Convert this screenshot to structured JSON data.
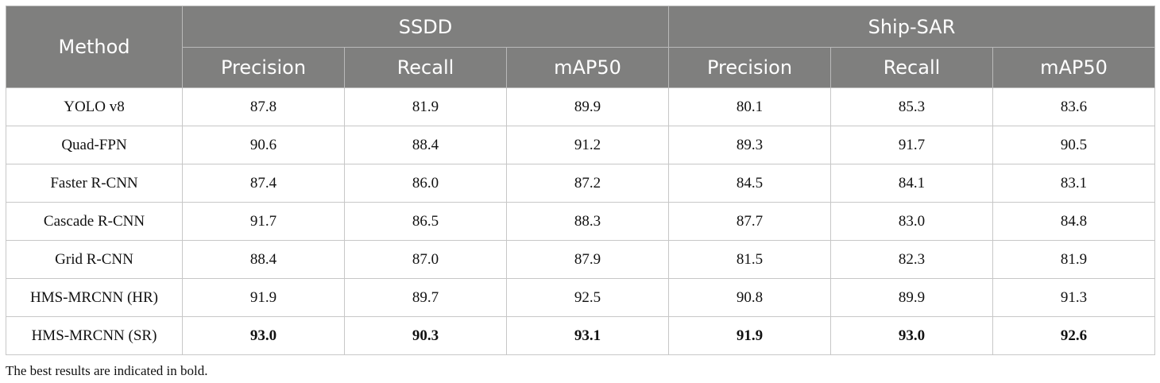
{
  "table": {
    "method_header": "Method",
    "groups": [
      {
        "name": "SSDD",
        "metrics": [
          "Precision",
          "Recall",
          "mAP50"
        ]
      },
      {
        "name": "Ship-SAR",
        "metrics": [
          "Precision",
          "Recall",
          "mAP50"
        ]
      }
    ],
    "rows": [
      {
        "method": "YOLO v8",
        "values": [
          "87.8",
          "81.9",
          "89.9",
          "80.1",
          "85.3",
          "83.6"
        ]
      },
      {
        "method": "Quad-FPN",
        "values": [
          "90.6",
          "88.4",
          "91.2",
          "89.3",
          "91.7",
          "90.5"
        ]
      },
      {
        "method": "Faster R-CNN",
        "values": [
          "87.4",
          "86.0",
          "87.2",
          "84.5",
          "84.1",
          "83.1"
        ]
      },
      {
        "method": "Cascade R-CNN",
        "values": [
          "91.7",
          "86.5",
          "88.3",
          "87.7",
          "83.0",
          "84.8"
        ]
      },
      {
        "method": "Grid R-CNN",
        "values": [
          "88.4",
          "87.0",
          "87.9",
          "81.5",
          "82.3",
          "81.9"
        ]
      },
      {
        "method": "HMS-MRCNN (HR)",
        "values": [
          "91.9",
          "89.7",
          "92.5",
          "90.8",
          "89.9",
          "91.3"
        ]
      },
      {
        "method": "HMS-MRCNN (SR)",
        "values": [
          "93.0",
          "90.3",
          "93.1",
          "91.9",
          "93.0",
          "92.6"
        ],
        "bold": true
      }
    ]
  },
  "footnote": "The best results are indicated in bold.",
  "colors": {
    "header_bg": "#7f7f7e",
    "header_text": "#ffffff",
    "border": "#c7c7c7"
  }
}
